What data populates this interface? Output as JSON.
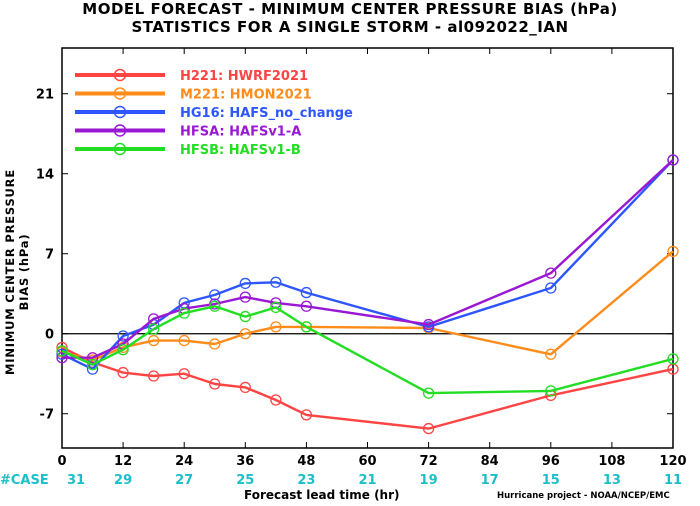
{
  "chart_data": {
    "type": "line",
    "title": "MODEL FORECAST - MINIMUM CENTER PRESSURE BIAS (hPa)",
    "subtitle": "STATISTICS FOR A SINGLE STORM - al092022_IAN",
    "xlabel": "Forecast lead time (hr)",
    "ylabel": "MINIMUM CENTER PRESSURE BIAS (hPa)",
    "xlim": [
      0,
      120
    ],
    "ylim": [
      -10,
      25
    ],
    "xticks": [
      0,
      12,
      24,
      36,
      48,
      60,
      72,
      84,
      96,
      108,
      120
    ],
    "yticks": [
      -7,
      0,
      7,
      14,
      21
    ],
    "legend_position": "top-left",
    "grid": false,
    "case_label": "#CASE",
    "cases": [
      31,
      29,
      27,
      25,
      23,
      21,
      19,
      17,
      15,
      13,
      11
    ],
    "series": [
      {
        "name": "H221:  HWRF2021",
        "color": "#ff4444",
        "points": [
          [
            0,
            -1.2
          ],
          [
            6,
            -2.5
          ],
          [
            12,
            -3.4
          ],
          [
            18,
            -3.7
          ],
          [
            24,
            -3.5
          ],
          [
            30,
            -4.4
          ],
          [
            36,
            -4.7
          ],
          [
            42,
            -5.8
          ],
          [
            48,
            -7.1
          ],
          [
            72,
            -8.3
          ],
          [
            96,
            -5.4
          ],
          [
            120,
            -3.1
          ]
        ]
      },
      {
        "name": "M221:  HMON2021",
        "color": "#ff8c1a",
        "points": [
          [
            0,
            -1.6
          ],
          [
            6,
            -2.3
          ],
          [
            12,
            -1.2
          ],
          [
            18,
            -0.6
          ],
          [
            24,
            -0.6
          ],
          [
            30,
            -0.9
          ],
          [
            36,
            0.0
          ],
          [
            42,
            0.6
          ],
          [
            48,
            0.6
          ],
          [
            72,
            0.5
          ],
          [
            96,
            -1.8
          ],
          [
            120,
            7.2
          ]
        ]
      },
      {
        "name": "HG16:  HAFS_no_change",
        "color": "#2e56ff",
        "points": [
          [
            0,
            -1.8
          ],
          [
            6,
            -3.1
          ],
          [
            12,
            -0.2
          ],
          [
            18,
            0.8
          ],
          [
            24,
            2.7
          ],
          [
            30,
            3.4
          ],
          [
            36,
            4.4
          ],
          [
            42,
            4.5
          ],
          [
            48,
            3.6
          ],
          [
            72,
            0.6
          ],
          [
            96,
            4.0
          ],
          [
            120,
            15.2
          ]
        ]
      },
      {
        "name": "HFSA:  HAFSv1-A",
        "color": "#9a17d4",
        "points": [
          [
            0,
            -2.1
          ],
          [
            6,
            -2.1
          ],
          [
            12,
            -0.9
          ],
          [
            18,
            1.3
          ],
          [
            24,
            2.2
          ],
          [
            30,
            2.6
          ],
          [
            36,
            3.2
          ],
          [
            42,
            2.7
          ],
          [
            48,
            2.4
          ],
          [
            72,
            0.8
          ],
          [
            96,
            5.3
          ],
          [
            120,
            15.2
          ]
        ]
      },
      {
        "name": "HFSB:  HAFSv1-B",
        "color": "#22dd22",
        "points": [
          [
            0,
            -1.5
          ],
          [
            6,
            -2.7
          ],
          [
            12,
            -1.4
          ],
          [
            18,
            0.4
          ],
          [
            24,
            1.8
          ],
          [
            30,
            2.4
          ],
          [
            36,
            1.5
          ],
          [
            42,
            2.3
          ],
          [
            48,
            0.6
          ],
          [
            72,
            -5.2
          ],
          [
            96,
            -5.0
          ],
          [
            120,
            -2.2
          ]
        ]
      }
    ]
  },
  "credit": "Hurricane project - NOAA/NCEP/EMC"
}
